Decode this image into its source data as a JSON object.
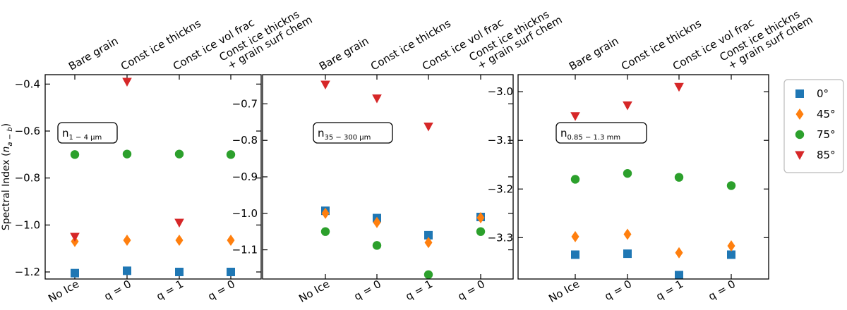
{
  "colors": {
    "0": "#1f77b4",
    "45": "#ff7f0e",
    "75": "#2ca02c",
    "85": "#d62728"
  },
  "chart_data": [
    {
      "type": "scatter",
      "title": "",
      "annotation": "n",
      "annotation_sub": "1 − 4 μm",
      "ylabel": "Spectral Index (",
      "ylabel_var": "n",
      "ylabel_sub": "a − b",
      "ylabel_end": ")",
      "ylim": [
        -1.23,
        -0.36
      ],
      "yticks": [
        -1.2,
        -1.0,
        -0.8,
        -0.6,
        -0.4
      ],
      "ytick_labels": [
        "−1.2",
        "−1.0",
        "−0.8",
        "−0.6",
        "−0.4"
      ],
      "bottom_labels": [
        "No Ice",
        "q = 0",
        "q = 1",
        "q = 0"
      ],
      "top_labels": [
        "Bare grain",
        "Const ice thickns",
        "Const ice vol frac",
        "Const ice thickns",
        "+ grain surf chem"
      ],
      "series": [
        {
          "name": "0°",
          "marker": "square",
          "values": [
            -1.205,
            -1.195,
            -1.2,
            -1.2
          ]
        },
        {
          "name": "45°",
          "marker": "diamond",
          "values": [
            -1.07,
            -1.065,
            -1.065,
            -1.065
          ]
        },
        {
          "name": "75°",
          "marker": "circle",
          "values": [
            -0.7,
            -0.698,
            -0.698,
            -0.7
          ]
        },
        {
          "name": "85°",
          "marker": "triangle-down",
          "values": [
            -1.05,
            -0.39,
            -0.99,
            null
          ]
        }
      ]
    },
    {
      "type": "scatter",
      "title": "",
      "annotation": "n",
      "annotation_sub": "35 − 300 μm",
      "ylim": [
        -1.18,
        -0.62
      ],
      "yticks": [
        -1.1,
        -1.0,
        -0.9,
        -0.8,
        -0.7
      ],
      "ytick_labels": [
        "−1.1",
        "−1.0",
        "−0.9",
        "−0.8",
        "−0.7"
      ],
      "bottom_labels": [
        "No Ice",
        "q = 0",
        "q = 1",
        "q = 0"
      ],
      "top_labels": [
        "Bare grain",
        "Const ice thickns",
        "Const ice vol frac",
        "Const ice thickns",
        "+ grain surf chem"
      ],
      "series": [
        {
          "name": "0°",
          "marker": "square",
          "values": [
            -0.993,
            -1.013,
            -1.06,
            -1.01
          ]
        },
        {
          "name": "45°",
          "marker": "diamond",
          "values": [
            -1.0,
            -1.025,
            -1.08,
            -1.012
          ]
        },
        {
          "name": "75°",
          "marker": "circle",
          "values": [
            -1.05,
            -1.088,
            -1.168,
            -1.05
          ]
        },
        {
          "name": "85°",
          "marker": "triangle-down",
          "values": [
            -0.647,
            -0.685,
            -0.762,
            null
          ]
        }
      ]
    },
    {
      "type": "scatter",
      "title": "",
      "annotation": "n",
      "annotation_sub": "0.85 − 1.3 mm",
      "ylim": [
        -3.385,
        -2.965
      ],
      "yticks": [
        -3.3,
        -3.2,
        -3.1,
        -3.0
      ],
      "ytick_labels": [
        "−3.3",
        "−3.2",
        "−3.1",
        "−3.0"
      ],
      "bottom_labels": [
        "No Ice",
        "q = 0",
        "q = 1",
        "q = 0"
      ],
      "top_labels": [
        "Bare grain",
        "Const ice thickns",
        "Const ice vol frac",
        "Const ice thickns",
        "+ grain surf chem"
      ],
      "series": [
        {
          "name": "0°",
          "marker": "square",
          "values": [
            -3.335,
            -3.333,
            -3.377,
            -3.335
          ]
        },
        {
          "name": "45°",
          "marker": "diamond",
          "values": [
            -3.298,
            -3.293,
            -3.331,
            -3.317
          ]
        },
        {
          "name": "75°",
          "marker": "circle",
          "values": [
            -3.18,
            -3.168,
            -3.176,
            -3.193
          ]
        },
        {
          "name": "85°",
          "marker": "triangle-down",
          "values": [
            -3.05,
            -3.028,
            -2.99,
            null
          ]
        }
      ]
    }
  ],
  "legend": {
    "placement": "right",
    "entries": [
      {
        "label": "0°",
        "marker": "square",
        "color_key": "0"
      },
      {
        "label": "45°",
        "marker": "diamond",
        "color_key": "45"
      },
      {
        "label": "75°",
        "marker": "circle",
        "color_key": "75"
      },
      {
        "label": "85°",
        "marker": "triangle-down",
        "color_key": "85"
      }
    ]
  }
}
